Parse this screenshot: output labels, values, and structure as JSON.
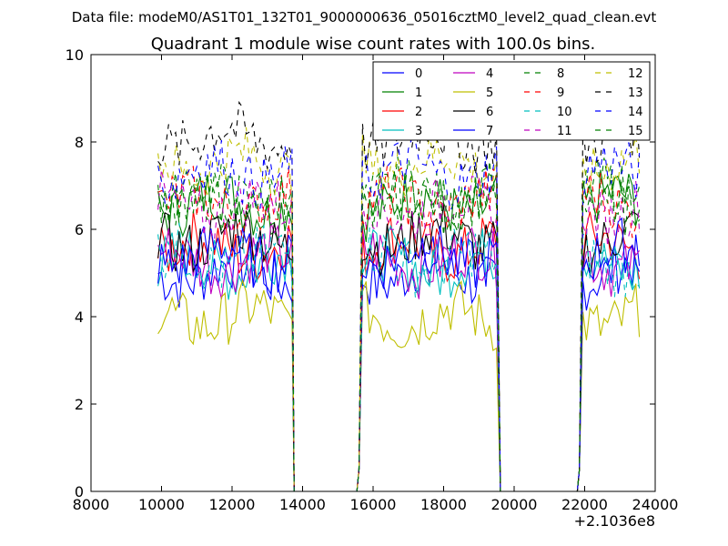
{
  "header": {
    "data_file": "Data file: modeM0/AS1T01_132T01_9000000636_05016cztM0_level2_quad_clean.evt"
  },
  "chart_data": {
    "type": "line",
    "title": "Quadrant 1 module wise count rates with 100.0s bins.",
    "xlabel": "",
    "ylabel": "",
    "x_offset_label": "+2.1036e8",
    "xlim": [
      8000,
      24000
    ],
    "ylim": [
      0,
      10
    ],
    "x_ticks": [
      "8000",
      "10000",
      "12000",
      "14000",
      "16000",
      "18000",
      "20000",
      "22000",
      "24000"
    ],
    "y_ticks": [
      "0",
      "2",
      "4",
      "6",
      "8",
      "10"
    ],
    "legend_position": "top-right",
    "grid": false,
    "segments": [
      [
        9900,
        13700
      ],
      [
        15600,
        19550
      ],
      [
        21850,
        23600
      ]
    ],
    "series": [
      {
        "name": "0",
        "color": "#0000ff",
        "dash": "solid",
        "mean": 5.0
      },
      {
        "name": "1",
        "color": "#008000",
        "dash": "solid",
        "mean": 6.6
      },
      {
        "name": "2",
        "color": "#ff0000",
        "dash": "solid",
        "mean": 5.6
      },
      {
        "name": "3",
        "color": "#00bfbf",
        "dash": "solid",
        "mean": 5.2
      },
      {
        "name": "4",
        "color": "#bf00bf",
        "dash": "solid",
        "mean": 5.3
      },
      {
        "name": "5",
        "color": "#bfbf00",
        "dash": "solid",
        "mean": 4.0
      },
      {
        "name": "6",
        "color": "#000000",
        "dash": "solid",
        "mean": 5.8
      },
      {
        "name": "7",
        "color": "#0000ff",
        "dash": "solid",
        "mean": 5.4
      },
      {
        "name": "8",
        "color": "#008000",
        "dash": "dashed",
        "mean": 6.8
      },
      {
        "name": "9",
        "color": "#ff0000",
        "dash": "dashed",
        "mean": 6.6
      },
      {
        "name": "10",
        "color": "#00bfbf",
        "dash": "dashed",
        "mean": 5.3
      },
      {
        "name": "11",
        "color": "#bf00bf",
        "dash": "dashed",
        "mean": 6.5
      },
      {
        "name": "12",
        "color": "#bfbf00",
        "dash": "dashed",
        "mean": 7.5
      },
      {
        "name": "13",
        "color": "#000000",
        "dash": "dashed",
        "mean": 8.1
      },
      {
        "name": "14",
        "color": "#0000ff",
        "dash": "dashed",
        "mean": 7.3
      },
      {
        "name": "15",
        "color": "#008000",
        "dash": "dashed",
        "mean": 6.6
      }
    ]
  }
}
